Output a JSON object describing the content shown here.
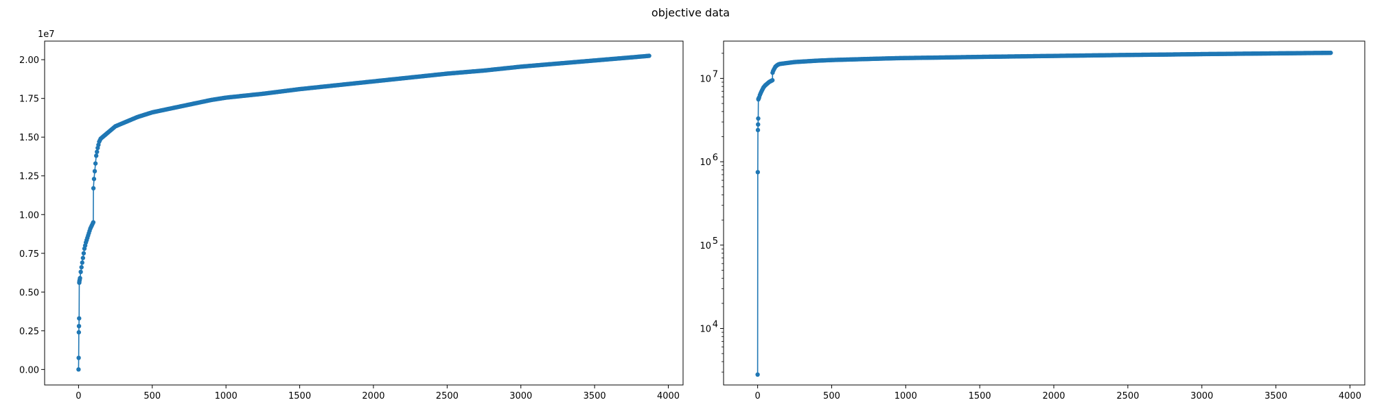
{
  "figure": {
    "suptitle": "objective data"
  },
  "chart_data": [
    {
      "type": "line",
      "marker": "dot",
      "color": "#1f77b4",
      "title": "",
      "xlabel": "",
      "ylabel": "",
      "yscale": "linear",
      "offset_text": "1e7",
      "xlim": [
        -230,
        4100
      ],
      "ylim": [
        -1000000,
        21200000
      ],
      "xticks": [
        0,
        500,
        1000,
        1500,
        2000,
        2500,
        3000,
        3500,
        4000
      ],
      "xtick_labels": [
        "0",
        "500",
        "1000",
        "1500",
        "2000",
        "2500",
        "3000",
        "3500",
        "4000"
      ],
      "yticks": [
        0,
        2500000,
        5000000,
        7500000,
        10000000,
        12500000,
        15000000,
        17500000,
        20000000
      ],
      "ytick_labels": [
        "0.00",
        "0.25",
        "0.50",
        "0.75",
        "1.00",
        "1.25",
        "1.50",
        "1.75",
        "2.00"
      ],
      "grid": false,
      "series": [
        {
          "x": [
            0,
            1,
            2,
            3,
            4,
            5,
            6,
            8,
            10,
            15,
            20,
            30,
            40,
            50,
            60,
            70,
            80,
            90,
            100,
            101,
            105,
            110,
            115,
            120,
            130,
            140,
            150,
            175,
            200,
            250,
            300,
            400,
            500,
            600,
            700,
            800,
            900,
            1000,
            1250,
            1500,
            1750,
            2000,
            2250,
            2500,
            2750,
            3000,
            3250,
            3500,
            3750,
            3870
          ],
          "y": [
            2800,
            750000,
            2400000,
            2800000,
            3300000,
            5600000,
            5700000,
            5800000,
            5900000,
            6300000,
            6600000,
            7200000,
            7800000,
            8200000,
            8500000,
            8800000,
            9100000,
            9300000,
            9500000,
            11700000,
            12300000,
            12800000,
            13300000,
            13800000,
            14300000,
            14700000,
            14900000,
            15100000,
            15300000,
            15700000,
            15900000,
            16300000,
            16600000,
            16800000,
            17000000,
            17200000,
            17400000,
            17550000,
            17800000,
            18100000,
            18350000,
            18600000,
            18850000,
            19100000,
            19300000,
            19550000,
            19750000,
            19950000,
            20150000,
            20250000
          ]
        }
      ]
    },
    {
      "type": "line",
      "marker": "dot",
      "color": "#1f77b4",
      "title": "",
      "xlabel": "",
      "ylabel": "",
      "yscale": "log",
      "xlim": [
        -230,
        4100
      ],
      "ylim": [
        2100,
        28000000
      ],
      "xticks": [
        0,
        500,
        1000,
        1500,
        2000,
        2500,
        3000,
        3500,
        4000
      ],
      "xtick_labels": [
        "0",
        "500",
        "1000",
        "1500",
        "2000",
        "2500",
        "3000",
        "3500",
        "4000"
      ],
      "yticks": [
        10000,
        100000,
        1000000,
        10000000
      ],
      "ytick_labels": [
        {
          "base": "10",
          "exp": "4"
        },
        {
          "base": "10",
          "exp": "5"
        },
        {
          "base": "10",
          "exp": "6"
        },
        {
          "base": "10",
          "exp": "7"
        }
      ],
      "grid": false,
      "series": [
        {
          "x": [
            0,
            1,
            2,
            3,
            4,
            5,
            6,
            8,
            10,
            15,
            20,
            30,
            40,
            50,
            60,
            70,
            80,
            90,
            100,
            101,
            105,
            110,
            115,
            120,
            130,
            140,
            150,
            175,
            200,
            250,
            300,
            400,
            500,
            600,
            700,
            800,
            900,
            1000,
            1250,
            1500,
            1750,
            2000,
            2250,
            2500,
            2750,
            3000,
            3250,
            3500,
            3750,
            3870
          ],
          "y": [
            2800,
            750000,
            2400000,
            2800000,
            3300000,
            5600000,
            5700000,
            5800000,
            5900000,
            6300000,
            6600000,
            7200000,
            7800000,
            8200000,
            8500000,
            8800000,
            9100000,
            9300000,
            9500000,
            11700000,
            12300000,
            12800000,
            13300000,
            13800000,
            14300000,
            14700000,
            14900000,
            15100000,
            15300000,
            15700000,
            15900000,
            16300000,
            16600000,
            16800000,
            17000000,
            17200000,
            17400000,
            17550000,
            17800000,
            18100000,
            18350000,
            18600000,
            18850000,
            19100000,
            19300000,
            19550000,
            19750000,
            19950000,
            20150000,
            20250000
          ]
        }
      ]
    }
  ]
}
